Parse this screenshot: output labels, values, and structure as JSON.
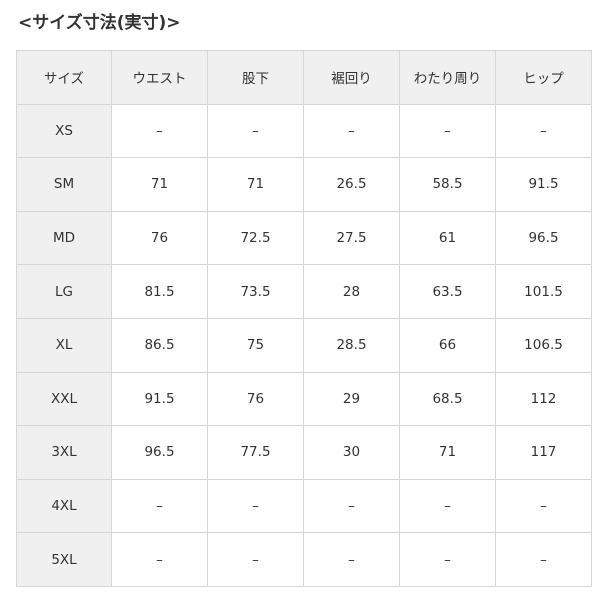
{
  "title": "<サイズ寸法(実寸)>",
  "table": {
    "headers": [
      "サイズ",
      "ウエスト",
      "股下",
      "裾回り",
      "わたり周り",
      "ヒップ"
    ],
    "rows": [
      [
        "XS",
        "–",
        "–",
        "–",
        "–",
        "–"
      ],
      [
        "SM",
        "71",
        "71",
        "26.5",
        "58.5",
        "91.5"
      ],
      [
        "MD",
        "76",
        "72.5",
        "27.5",
        "61",
        "96.5"
      ],
      [
        "LG",
        "81.5",
        "73.5",
        "28",
        "63.5",
        "101.5"
      ],
      [
        "XL",
        "86.5",
        "75",
        "28.5",
        "66",
        "106.5"
      ],
      [
        "XXL",
        "91.5",
        "76",
        "29",
        "68.5",
        "112"
      ],
      [
        "3XL",
        "96.5",
        "77.5",
        "30",
        "71",
        "117"
      ],
      [
        "4XL",
        "–",
        "–",
        "–",
        "–",
        "–"
      ],
      [
        "5XL",
        "–",
        "–",
        "–",
        "–",
        "–"
      ]
    ]
  }
}
